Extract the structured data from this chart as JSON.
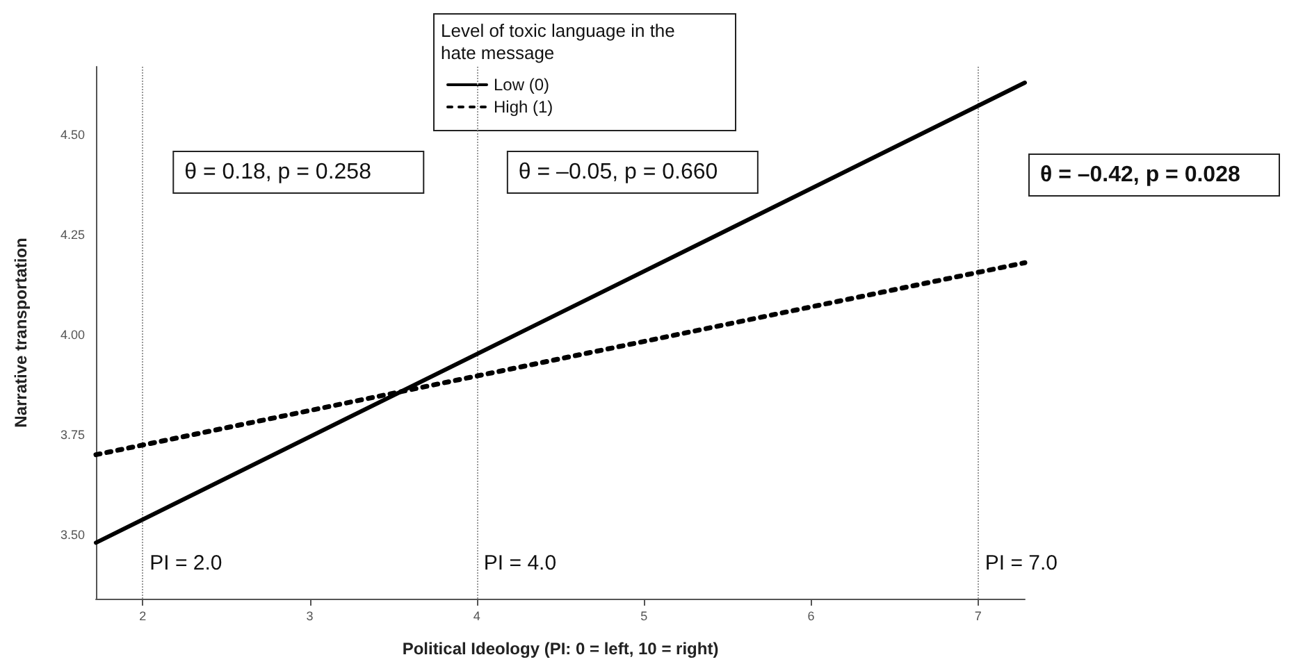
{
  "chart_data": {
    "type": "line",
    "xlabel": "Political Ideology (PI: 0 = left, 10 = right)",
    "ylabel": "Narrative transportation",
    "legend_title": "Level of toxic language in the hate message",
    "legend": "top",
    "grid": false,
    "marker": "none",
    "xlim": [
      1.72,
      7.28
    ],
    "xticks": [
      2,
      3,
      4,
      5,
      6,
      7
    ],
    "ylim": [
      3.34,
      4.67
    ],
    "yticks": [
      {
        "value": 3.5,
        "label": "3.50"
      },
      {
        "value": 3.75,
        "label": "3.75"
      },
      {
        "value": 4.0,
        "label": "4.00"
      },
      {
        "value": 4.25,
        "label": "4.25"
      },
      {
        "value": 4.5,
        "label": "4.50"
      }
    ],
    "x": [
      1.72,
      7.28
    ],
    "series": [
      {
        "name": "Low (0)",
        "color": "#000000",
        "line_style": "solid",
        "values": [
          3.48,
          4.63
        ]
      },
      {
        "name": "High (1)",
        "color": "#000000",
        "line_style": "dotted",
        "values": [
          3.7,
          4.18
        ]
      }
    ],
    "ref_lines": [
      {
        "axis": "x",
        "value": 2,
        "label": "PI = 2.0",
        "color": "#999999",
        "line_style": "dotted"
      },
      {
        "axis": "x",
        "value": 4,
        "label": "PI = 4.0",
        "color": "#999999",
        "line_style": "dotted"
      },
      {
        "axis": "x",
        "value": 7,
        "label": "PI = 7.0",
        "color": "#999999",
        "line_style": "dotted"
      }
    ],
    "annotations": [
      "θ = 0.18, p = 0.258",
      "θ = –0.05, p = 0.660",
      "θ = –0.42, p = 0.028"
    ]
  }
}
